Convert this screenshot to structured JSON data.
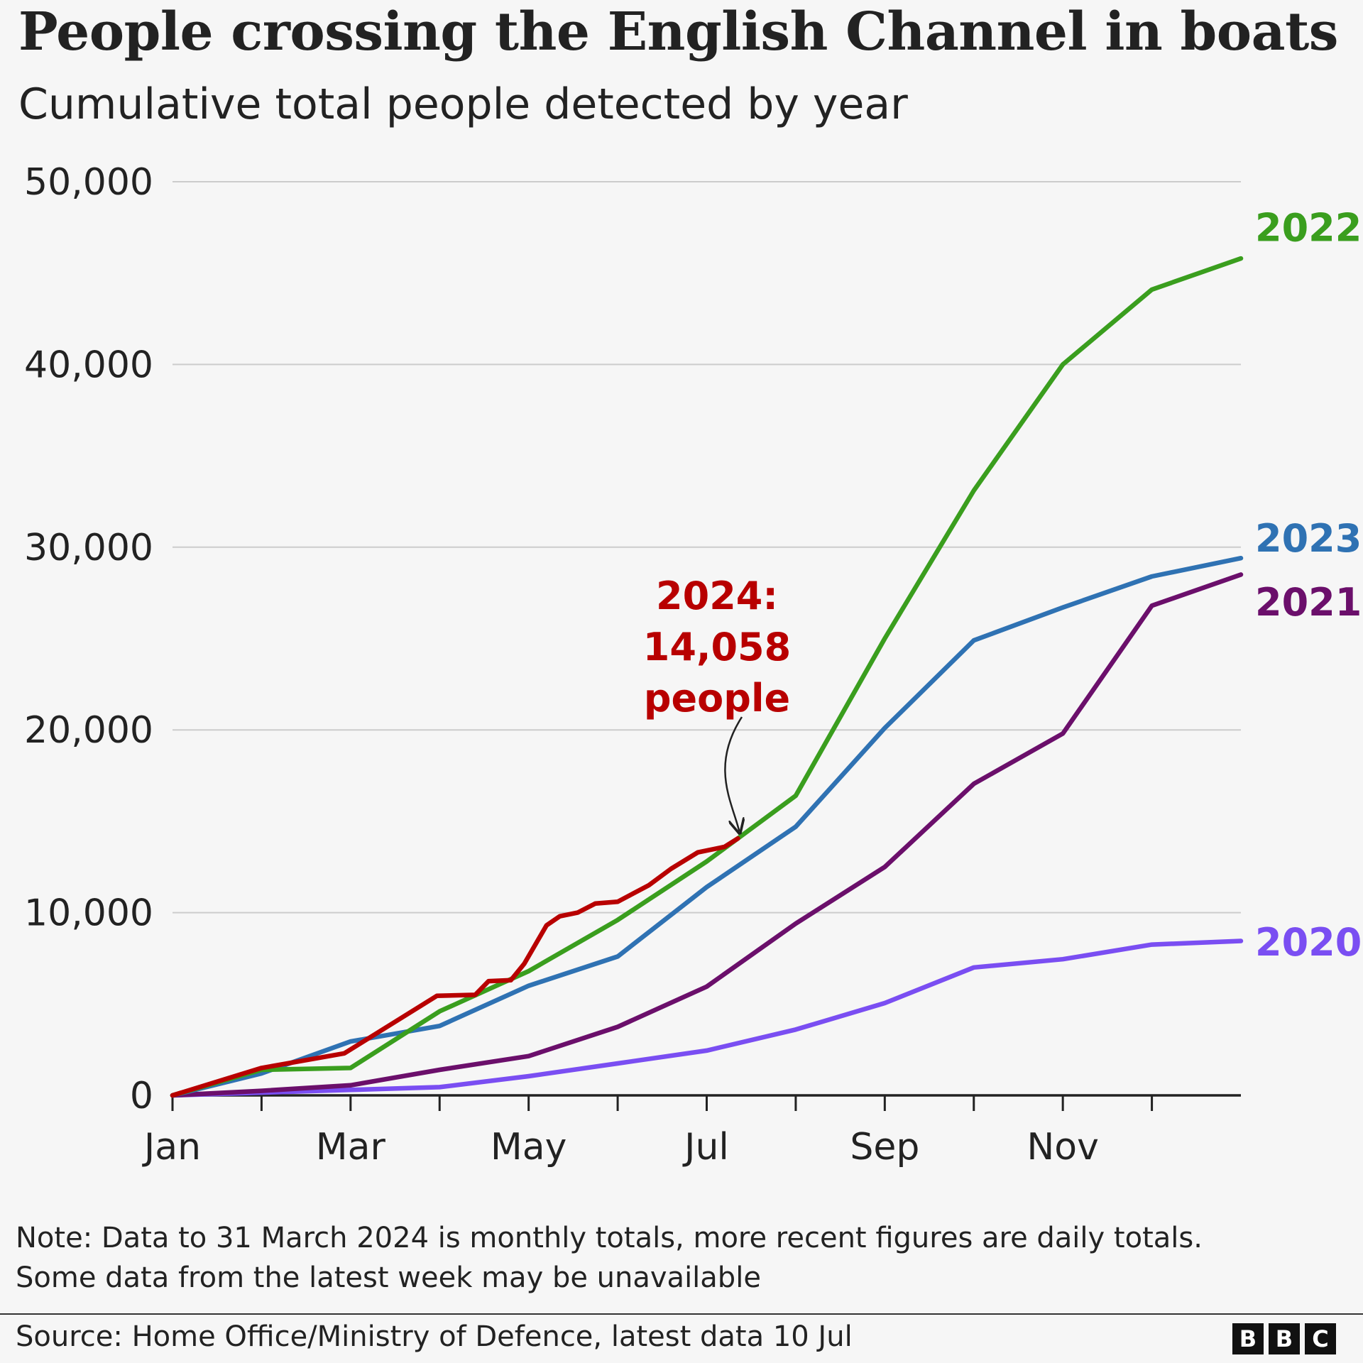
{
  "chart_data": {
    "type": "line",
    "title": "People crossing the English Channel in boats",
    "subtitle": "Cumulative total people detected by year",
    "xlabel": "",
    "ylabel": "",
    "x_tick_labels": [
      "Jan",
      "Mar",
      "May",
      "Jul",
      "Sep",
      "Nov"
    ],
    "x_tick_positions": [
      0,
      2,
      4,
      6,
      8,
      10
    ],
    "xlim": [
      0,
      12
    ],
    "y_ticks": [
      0,
      10000,
      20000,
      30000,
      40000,
      50000
    ],
    "y_tick_labels": [
      "0",
      "10,000",
      "20,000",
      "30,000",
      "40,000",
      "50,000"
    ],
    "ylim": [
      0,
      50000
    ],
    "grid": true,
    "series": [
      {
        "name": "2020",
        "label": "2020",
        "color": "#7a4ef2",
        "label_value": 8400,
        "x": [
          0,
          1,
          2,
          3,
          4,
          5,
          6,
          7,
          8,
          9,
          10,
          11,
          12
        ],
        "values": [
          0,
          150,
          300,
          450,
          1050,
          1750,
          2450,
          3600,
          5050,
          7000,
          7450,
          8250,
          8450
        ]
      },
      {
        "name": "2021",
        "label": "2021",
        "color": "#6b0f6b",
        "label_value": 27000,
        "x": [
          0,
          1,
          2,
          3,
          4,
          5,
          6,
          7,
          8,
          9,
          10,
          11,
          12
        ],
        "values": [
          0,
          250,
          550,
          1400,
          2150,
          3750,
          5950,
          9400,
          12500,
          17050,
          19800,
          26800,
          28500
        ]
      },
      {
        "name": "2022",
        "label": "2022",
        "color": "#3a9e1e",
        "label_value": 47500,
        "x": [
          0,
          1,
          2,
          3,
          4,
          5,
          6,
          7,
          8,
          9,
          10,
          11,
          12
        ],
        "values": [
          0,
          1400,
          1500,
          4600,
          6800,
          9600,
          12800,
          16400,
          25000,
          33100,
          40000,
          44100,
          45800
        ]
      },
      {
        "name": "2023",
        "label": "2023",
        "color": "#2f72b3",
        "label_value": 30500,
        "x": [
          0,
          1,
          2,
          3,
          4,
          5,
          6,
          7,
          8,
          9,
          10,
          11,
          12
        ],
        "values": [
          0,
          1200,
          2950,
          3800,
          6000,
          7600,
          11400,
          14700,
          20100,
          24900,
          26700,
          28400,
          29400
        ]
      },
      {
        "name": "2024",
        "label": "",
        "color": "#b80000",
        "x": [
          0,
          1,
          1.93,
          2.97,
          3.4,
          3.55,
          3.8,
          3.95,
          4.2,
          4.35,
          4.55,
          4.75,
          5.0,
          5.35,
          5.6,
          5.9,
          6.2,
          6.35
        ],
        "values": [
          0,
          1500,
          2300,
          5450,
          5500,
          6250,
          6300,
          7200,
          9300,
          9800,
          10000,
          10500,
          10600,
          11500,
          12400,
          13300,
          13600,
          14058
        ]
      }
    ],
    "annotation": {
      "lines": [
        "2024:",
        "14,058",
        "people"
      ],
      "points_to": {
        "x": 6.35,
        "y": 14058
      }
    }
  },
  "note": {
    "line1": "Note: Data to 31 March 2024 is monthly totals, more recent figures are daily totals.",
    "line2": "Some data from the latest week may be unavailable"
  },
  "source": "Source: Home Office/Ministry of Defence, latest data 10 Jul",
  "logo": {
    "letters": [
      "B",
      "B",
      "C"
    ]
  }
}
